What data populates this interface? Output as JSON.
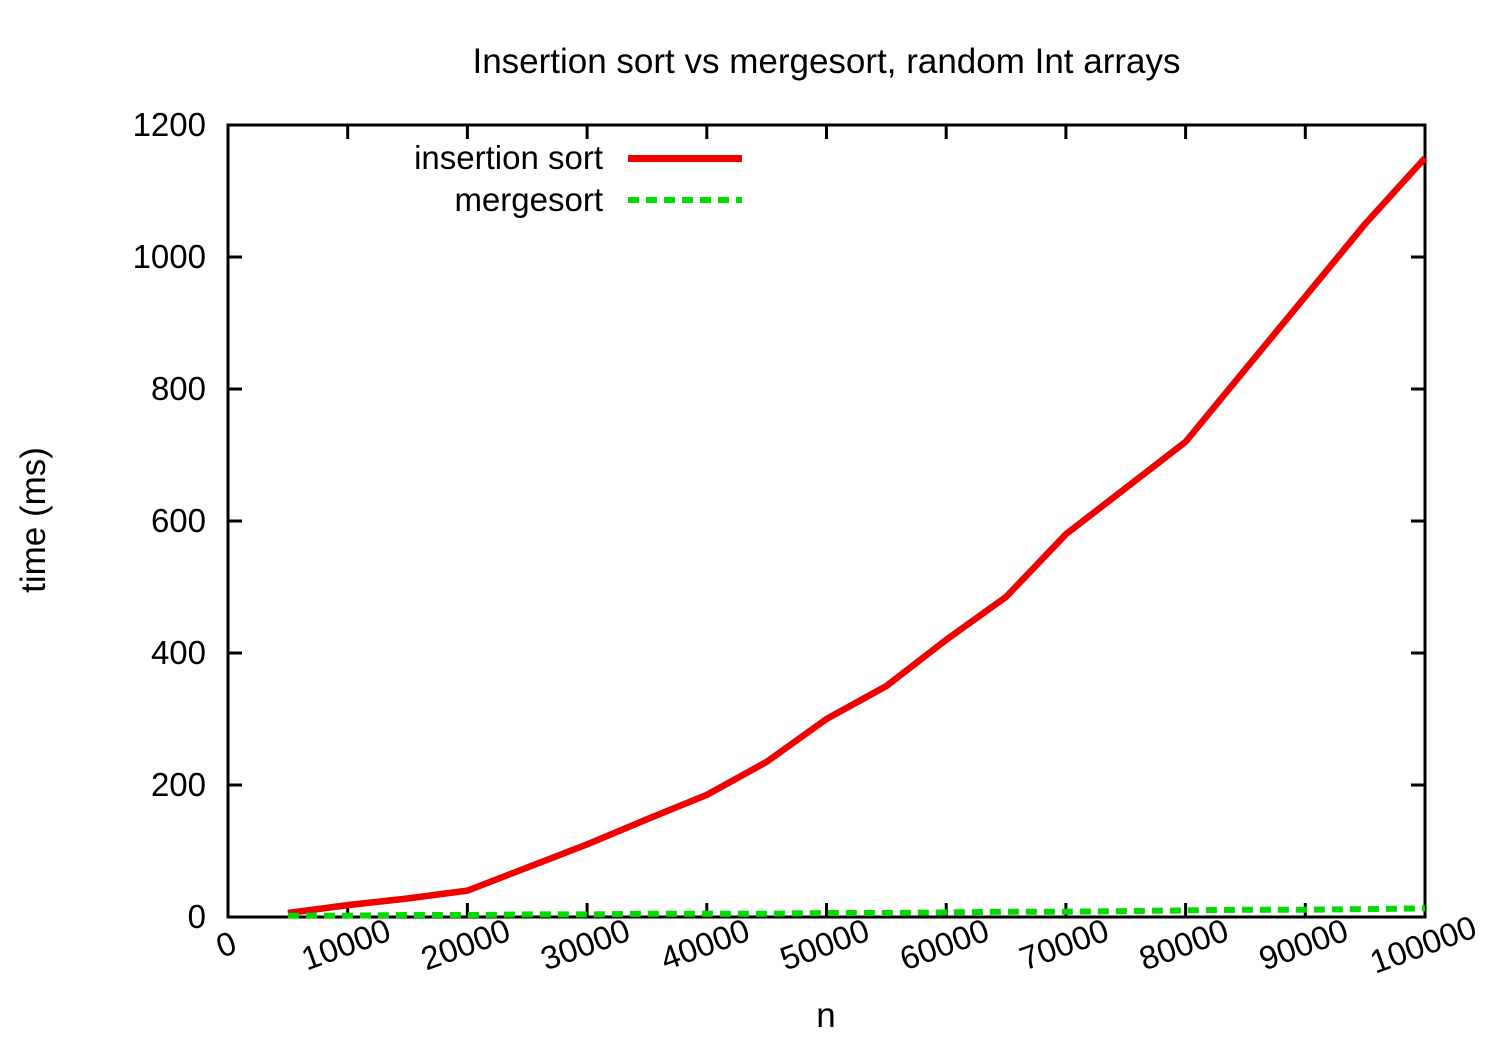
{
  "chart_data": {
    "type": "line",
    "title": "Insertion sort vs mergesort, random Int arrays",
    "xlabel": "n",
    "ylabel": "time (ms)",
    "xlim": [
      0,
      100000
    ],
    "ylim": [
      0,
      1200
    ],
    "xticks": [
      0,
      10000,
      20000,
      30000,
      40000,
      50000,
      60000,
      70000,
      80000,
      90000,
      100000
    ],
    "yticks": [
      0,
      200,
      400,
      600,
      800,
      1000,
      1200
    ],
    "xtick_rotation_deg": -20,
    "grid": false,
    "legend_position": "inside-top-left",
    "axis_color": "#000000",
    "background_color": "#ffffff",
    "series": [
      {
        "name": "insertion sort",
        "color": "#f00000",
        "line_style": "solid",
        "line_width": 6.5,
        "x": [
          5000,
          10000,
          15000,
          20000,
          25000,
          30000,
          35000,
          40000,
          45000,
          50000,
          55000,
          60000,
          65000,
          70000,
          75000,
          80000,
          85000,
          90000,
          95000,
          100000
        ],
        "y": [
          6,
          18,
          28,
          40,
          75,
          110,
          148,
          185,
          235,
          300,
          350,
          420,
          485,
          580,
          650,
          720,
          830,
          940,
          1050,
          1150
        ]
      },
      {
        "name": "mergesort",
        "color": "#00dc00",
        "line_style": "dashed",
        "line_width": 6,
        "x": [
          5000,
          10000,
          15000,
          20000,
          25000,
          30000,
          35000,
          40000,
          45000,
          50000,
          55000,
          60000,
          65000,
          70000,
          75000,
          80000,
          85000,
          90000,
          95000,
          100000
        ],
        "y": [
          2,
          2,
          3,
          3,
          4,
          4,
          5,
          5,
          5,
          6,
          6,
          7,
          8,
          8,
          9,
          10,
          11,
          11,
          12,
          13
        ]
      }
    ]
  }
}
